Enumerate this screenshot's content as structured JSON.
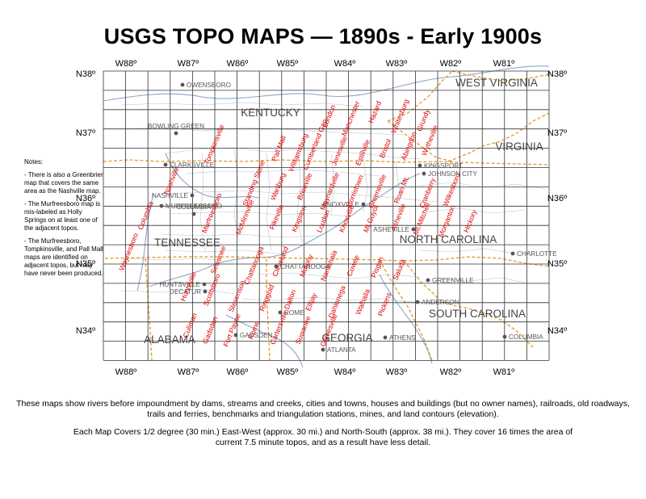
{
  "title": "USGS TOPO MAPS — 1890s - Early 1900s",
  "longitude_labels": [
    "W88º",
    "W87º",
    "W86º",
    "W85º",
    "W84º",
    "W83º",
    "W82º",
    "W81º"
  ],
  "latitude_labels": [
    "N38º",
    "N37º",
    "N36º",
    "N35º",
    "N34º"
  ],
  "states": [
    {
      "name": "KENTUCKY"
    },
    {
      "name": "WEST VIRGINIA"
    },
    {
      "name": "VIRGINIA"
    },
    {
      "name": "TENNESSEE"
    },
    {
      "name": "NORTH CAROLINA"
    },
    {
      "name": "SOUTH CAROLINA"
    },
    {
      "name": "GEORGIA"
    },
    {
      "name": "ALABAMA"
    }
  ],
  "cities": [
    {
      "name": "OWENSBORO"
    },
    {
      "name": "BOWLING GREEN"
    },
    {
      "name": "CLARKSVILLE"
    },
    {
      "name": "NASHVILLE"
    },
    {
      "name": "MURFREESBORO"
    },
    {
      "name": "COLUMBIA"
    },
    {
      "name": "KNOXVILLE"
    },
    {
      "name": "KINGSPORT"
    },
    {
      "name": "JOHNSON CITY"
    },
    {
      "name": "ASHEVILLE"
    },
    {
      "name": "CHARLOTTE"
    },
    {
      "name": "CHATTANOOGA"
    },
    {
      "name": "HUNTSVILLE"
    },
    {
      "name": "DECATUR"
    },
    {
      "name": "GREENVILLE"
    },
    {
      "name": "ANDERSON"
    },
    {
      "name": "ROME"
    },
    {
      "name": "GADSDEN"
    },
    {
      "name": "ATHENS"
    },
    {
      "name": "ATLANTA"
    },
    {
      "name": "COLUMBIA"
    }
  ],
  "quads": [
    {
      "name": "London"
    },
    {
      "name": "Manchester"
    },
    {
      "name": "Hazard"
    },
    {
      "name": "Whitesburg"
    },
    {
      "name": "Grundy"
    },
    {
      "name": "Tompkinsville"
    },
    {
      "name": "Pall Mall"
    },
    {
      "name": "Williamsburg"
    },
    {
      "name": "Cumberland Gap"
    },
    {
      "name": "Jonesville"
    },
    {
      "name": "Estillville"
    },
    {
      "name": "Bristol"
    },
    {
      "name": "Abingdon"
    },
    {
      "name": "Wytheville"
    },
    {
      "name": "Nashville"
    },
    {
      "name": "Standing Stone"
    },
    {
      "name": "Wartburg"
    },
    {
      "name": "Briceville"
    },
    {
      "name": "Maynardville"
    },
    {
      "name": "Morristown"
    },
    {
      "name": "Greeneville"
    },
    {
      "name": "Roan Mt."
    },
    {
      "name": "Cranberry"
    },
    {
      "name": "Wilkesboro"
    },
    {
      "name": "Columbia"
    },
    {
      "name": "Murfreesboro"
    },
    {
      "name": "McMinnville"
    },
    {
      "name": "Pikeville"
    },
    {
      "name": "Kingston"
    },
    {
      "name": "Loudon"
    },
    {
      "name": "Knoxville"
    },
    {
      "name": "Mt Guyot"
    },
    {
      "name": "Asheville"
    },
    {
      "name": "Mt.Mitchell"
    },
    {
      "name": "Morganton"
    },
    {
      "name": "Hickory"
    },
    {
      "name": "Waynesboro"
    },
    {
      "name": "Sewanee"
    },
    {
      "name": "Chattanooga"
    },
    {
      "name": "Cleveland"
    },
    {
      "name": "Murphy"
    },
    {
      "name": "Nantahala"
    },
    {
      "name": "Cowee"
    },
    {
      "name": "Pisgah"
    },
    {
      "name": "Saluda"
    },
    {
      "name": "Huntsville"
    },
    {
      "name": "Scottsboro"
    },
    {
      "name": "Stevenson"
    },
    {
      "name": "Ringgold"
    },
    {
      "name": "Dalton"
    },
    {
      "name": "Ellijay"
    },
    {
      "name": "Dahlonega"
    },
    {
      "name": "Walhalla"
    },
    {
      "name": "Pickens"
    },
    {
      "name": "Cullman"
    },
    {
      "name": "Gadsden"
    },
    {
      "name": "Fort Payne"
    },
    {
      "name": "Rome"
    },
    {
      "name": "Cartersville"
    },
    {
      "name": "Suwanee"
    },
    {
      "name": "Gainesville"
    }
  ],
  "notes": {
    "heading": "Notes:",
    "items": [
      "- There is also a Greenbrier map that covers the same area as the Nashville map.",
      "- The Murfreesboro map is mis-labeled as Holly Springs on at least one of the adjacent topos.",
      "- The Murfreesboro, Tompkinsville, and Pall Mall maps are identified on adjacent topos, but may have never been produced."
    ]
  },
  "description": [
    "These maps show rivers before impoundment by dams, streams and creeks, cities and towns, houses and buildings (but no owner names), railroads, old roadways, trails and ferries, benchmarks and triangulation stations, mines, and land contours (elevation).",
    "Each Map Covers 1/2 degree (30 min.) East-West (approx. 30 mi.) and North-South (approx. 38 mi.). They cover 16 times the area of current 7.5 minute topos, and as a result have less detail."
  ],
  "colors": {
    "grid": "#333333",
    "quad_label": "#e00000",
    "state_border": "#e39a2a",
    "river": "#8aa6c8",
    "county": "#b9c2cc",
    "label": "#555555"
  }
}
